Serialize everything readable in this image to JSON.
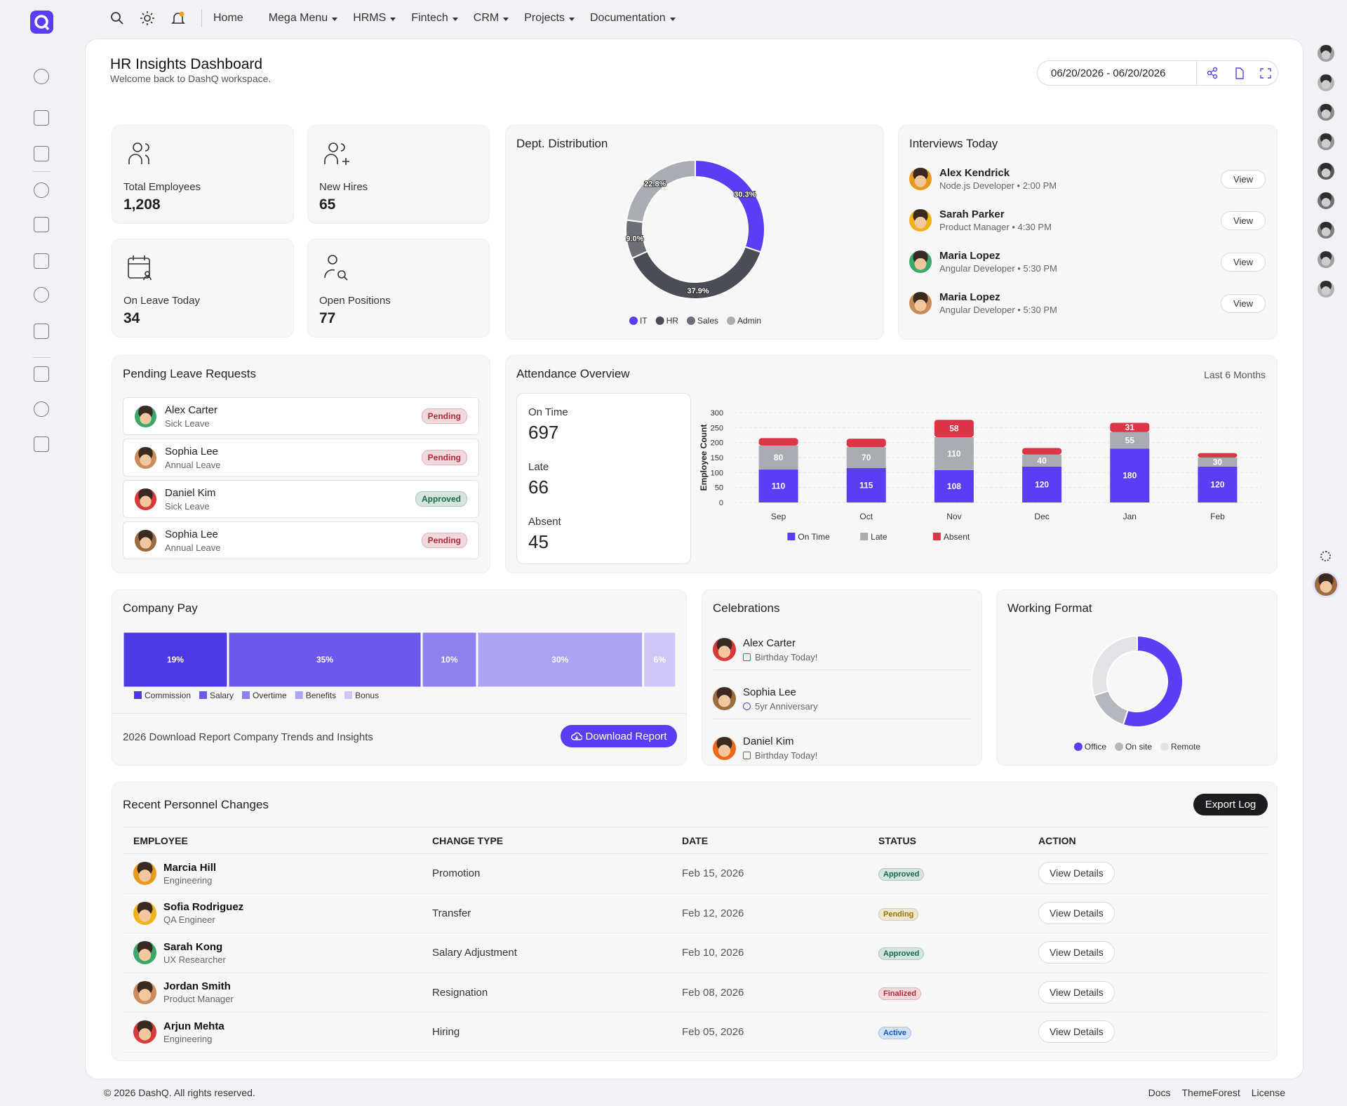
{
  "nav": {
    "menu": [
      "Home",
      "Mega Menu",
      "HRMS",
      "Fintech",
      "CRM",
      "Projects",
      "Documentation"
    ]
  },
  "header": {
    "title": "HR Insights Dashboard",
    "subtitle": "Welcome back to DashQ workspace.",
    "date_range": "06/20/2026 - 06/20/2026"
  },
  "stats": [
    {
      "label": "Total Employees",
      "value": "1,208"
    },
    {
      "label": "New Hires",
      "value": "65"
    },
    {
      "label": "On Leave Today",
      "value": "34"
    },
    {
      "label": "Open Positions",
      "value": "77"
    }
  ],
  "dept_distribution": {
    "type": "pie",
    "title": "Dept. Distribution",
    "categories": [
      "IT",
      "HR",
      "Sales",
      "Admin"
    ],
    "values": [
      30.3,
      37.9,
      9.0,
      22.8
    ],
    "value_labels": [
      "30.3%",
      "37.9%",
      "9.0%",
      "22.8%"
    ],
    "colors": [
      "#5b3df5",
      "#4a4d55",
      "#6c6f76",
      "#a8acb3"
    ]
  },
  "interviews": {
    "title": "Interviews Today",
    "items": [
      {
        "name": "Alex Kendrick",
        "detail": "Node.js Developer • 2:00 PM",
        "action": "View"
      },
      {
        "name": "Sarah Parker",
        "detail": "Product Manager • 4:30 PM",
        "action": "View"
      },
      {
        "name": "Maria Lopez",
        "detail": "Angular Developer • 5:30 PM",
        "action": "View"
      },
      {
        "name": "Maria Lopez",
        "detail": "Angular Developer • 5:30 PM",
        "action": "View"
      }
    ]
  },
  "leave_requests": {
    "title": "Pending Leave Requests",
    "items": [
      {
        "name": "Alex Carter",
        "type": "Sick Leave",
        "status": "Pending",
        "status_color": "#b02a37"
      },
      {
        "name": "Sophia Lee",
        "type": "Annual Leave",
        "status": "Pending",
        "status_color": "#b02a37"
      },
      {
        "name": "Daniel Kim",
        "type": "Sick Leave",
        "status": "Approved",
        "status_color": "#146c43"
      },
      {
        "name": "Sophia Lee",
        "type": "Annual Leave",
        "status": "Pending",
        "status_color": "#b02a37"
      }
    ]
  },
  "attendance": {
    "title": "Attendance Overview",
    "period": "Last 6 Months",
    "summary": [
      {
        "label": "On Time",
        "value": "697"
      },
      {
        "label": "Late",
        "value": "66"
      },
      {
        "label": "Absent",
        "value": "45"
      }
    ],
    "chart": {
      "type": "bar",
      "stacked": true,
      "y_label": "Employee Count",
      "categories": [
        "Sep",
        "Oct",
        "Nov",
        "Dec",
        "Jan",
        "Feb"
      ],
      "ylim": [
        0,
        300
      ],
      "yticks": [
        0,
        50,
        100,
        150,
        200,
        250,
        300
      ],
      "grid": true,
      "series": [
        {
          "name": "On Time",
          "color": "#5b3df5",
          "values": [
            110,
            115,
            108,
            120,
            180,
            120
          ]
        },
        {
          "name": "Late",
          "color": "#a8acb3",
          "values": [
            80,
            70,
            110,
            40,
            55,
            30
          ]
        },
        {
          "name": "Absent",
          "color": "#dc3545",
          "values": [
            25,
            28,
            58,
            22,
            31,
            15
          ]
        }
      ]
    }
  },
  "company_pay": {
    "type": "bar",
    "orientation": "horizontal",
    "stacked": true,
    "title": "Company Pay",
    "categories": [
      "Commission",
      "Salary",
      "Overtime",
      "Benefits",
      "Bonus"
    ],
    "values": [
      19,
      35,
      10,
      30,
      6
    ],
    "value_labels": [
      "19%",
      "35%",
      "10%",
      "30%",
      "6%"
    ],
    "colors": [
      "#4d38e6",
      "#6a59ea",
      "#8c81ee",
      "#aba3f3",
      "#ccc7f8"
    ],
    "footer": "2026 Download Report Company Trends and Insights",
    "button": "Download Report"
  },
  "celebrations": {
    "title": "Celebrations",
    "items": [
      {
        "name": "Alex Carter",
        "note": "Birthday Today!"
      },
      {
        "name": "Sophia Lee",
        "note": "5yr Anniversary"
      },
      {
        "name": "Daniel Kim",
        "note": "Birthday Today!"
      }
    ]
  },
  "working_format": {
    "type": "pie",
    "title": "Working Format",
    "categories": [
      "Office",
      "On site",
      "Remote"
    ],
    "values": [
      55,
      15,
      30
    ],
    "colors": [
      "#5b3df5",
      "#b4b8be",
      "#e3e4e7"
    ]
  },
  "personnel": {
    "title": "Recent Personnel Changes",
    "button": "Export Log",
    "columns": [
      "EMPLOYEE",
      "CHANGE TYPE",
      "DATE",
      "STATUS",
      "ACTION"
    ],
    "rows": [
      {
        "name": "Marcia Hill",
        "dept": "Engineering",
        "change": "Promotion",
        "date": "Feb 15, 2026",
        "status": "Approved",
        "status_color": "#146c43",
        "action": "View Details"
      },
      {
        "name": "Sofia Rodriguez",
        "dept": "QA Engineer",
        "change": "Transfer",
        "date": "Feb 12, 2026",
        "status": "Pending",
        "status_color": "#997404",
        "action": "View Details"
      },
      {
        "name": "Sarah Kong",
        "dept": "UX Researcher",
        "change": "Salary Adjustment",
        "date": "Feb 10, 2026",
        "status": "Approved",
        "status_color": "#146c43",
        "action": "View Details"
      },
      {
        "name": "Jordan Smith",
        "dept": "Product Manager",
        "change": "Resignation",
        "date": "Feb 08, 2026",
        "status": "Finalized",
        "status_color": "#b02a37",
        "action": "View Details"
      },
      {
        "name": "Arjun Mehta",
        "dept": "Engineering",
        "change": "Hiring",
        "date": "Feb 05, 2026",
        "status": "Active",
        "status_color": "#0a58ca",
        "action": "View Details"
      }
    ]
  },
  "footer": {
    "copyright": "© 2026 DashQ. All rights reserved.",
    "links": [
      "Docs",
      "ThemeForest",
      "License"
    ]
  }
}
